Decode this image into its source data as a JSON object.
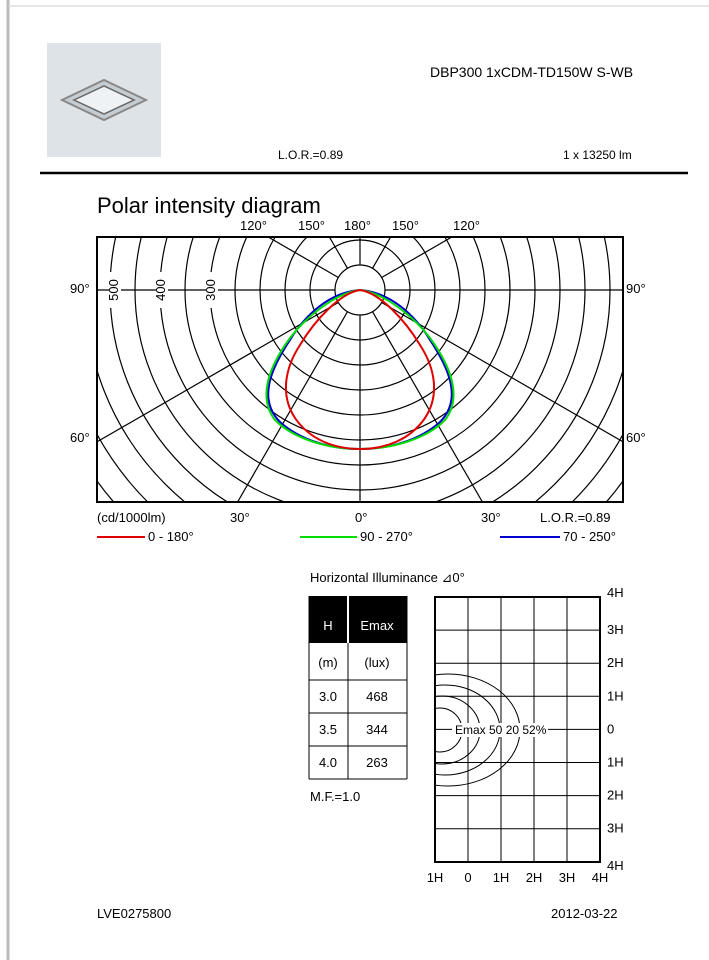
{
  "header": {
    "product": "DBP300 1xCDM-TD150W S-WB",
    "lor": "L.O.R.=0.89",
    "flux": "1 x 13250 lm"
  },
  "polar": {
    "title": "Polar intensity diagram",
    "top_labels": [
      "120°",
      "150°",
      "180°",
      "150°",
      "120°"
    ],
    "side_labels": {
      "left_90": "90°",
      "right_90": "90°",
      "left_60": "60°",
      "right_60": "60°"
    },
    "radius_labels": [
      "500",
      "400",
      "300"
    ],
    "units": "(cd/1000lm)",
    "bottom_labels": [
      "30°",
      "0°",
      "30°"
    ],
    "lor": "L.O.R.=0.89",
    "legend": [
      {
        "name": "0 - 180°",
        "color": "#e00000"
      },
      {
        "name": "90 - 270°",
        "color": "#00dd00"
      },
      {
        "name": "70 - 250°",
        "color": "#0000cc"
      }
    ]
  },
  "illuminance": {
    "title": "Horizontal Illuminance ⊿0°",
    "table": {
      "header": [
        "H",
        "Emax"
      ],
      "units": [
        "(m)",
        "(lux)"
      ],
      "rows": [
        [
          "3.0",
          "468"
        ],
        [
          "3.5",
          "344"
        ],
        [
          "4.0",
          "263"
        ]
      ]
    },
    "mf": "M.F.=1.0",
    "contour_label": "Emax 50 20  52%",
    "y_labels": [
      "4H",
      "3H",
      "2H",
      "1H",
      "0",
      "1H",
      "2H",
      "3H",
      "4H"
    ],
    "x_labels": [
      "1H",
      "0",
      "1H",
      "2H",
      "3H",
      "4H"
    ]
  },
  "footer": {
    "code": "LVE0275800",
    "date": "2012-03-22"
  }
}
